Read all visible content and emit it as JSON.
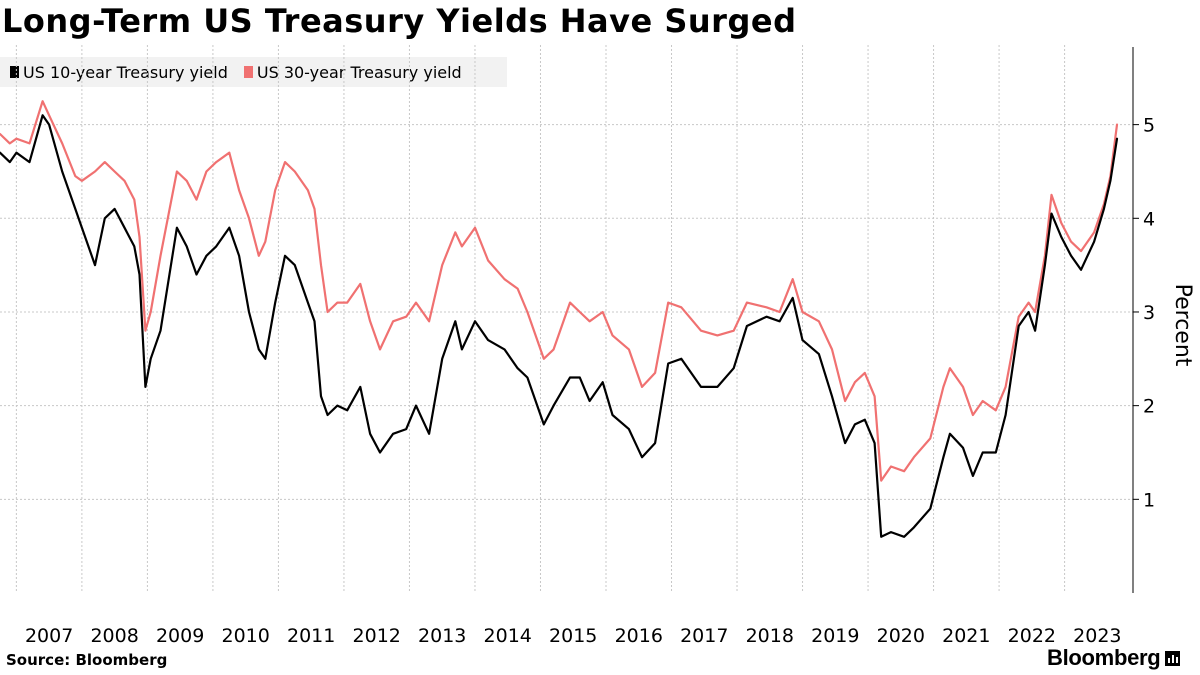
{
  "title": "Long-Term US Treasury Yields Have Surged",
  "legend": [
    {
      "label": "US 10-year Treasury yield",
      "color": "#000000"
    },
    {
      "label": "US 30-year Treasury yield",
      "color": "#f07171"
    }
  ],
  "source": "Source: Bloomberg",
  "brand": "Bloomberg",
  "chart_data": {
    "type": "line",
    "title": "Long-Term US Treasury Yields Have Surged",
    "xlabel": "",
    "ylabel": "Percent",
    "xlim": [
      2006.75,
      2023.8
    ],
    "ylim": [
      0,
      5.85
    ],
    "yticks": [
      1,
      2,
      3,
      4,
      5
    ],
    "xticks": [
      "2007",
      "2008",
      "2009",
      "2010",
      "2011",
      "2012",
      "2013",
      "2014",
      "2015",
      "2016",
      "2017",
      "2018",
      "2019",
      "2020",
      "2021",
      "2022",
      "2023"
    ],
    "grid": true,
    "legend_position": "top-left",
    "series": [
      {
        "name": "US 10-year Treasury yield",
        "color": "#000000",
        "points": [
          [
            2006.75,
            4.7
          ],
          [
            2006.9,
            4.6
          ],
          [
            2007.0,
            4.7
          ],
          [
            2007.2,
            4.6
          ],
          [
            2007.4,
            5.1
          ],
          [
            2007.5,
            5.0
          ],
          [
            2007.7,
            4.5
          ],
          [
            2007.9,
            4.1
          ],
          [
            2008.0,
            3.9
          ],
          [
            2008.2,
            3.5
          ],
          [
            2008.35,
            4.0
          ],
          [
            2008.5,
            4.1
          ],
          [
            2008.65,
            3.9
          ],
          [
            2008.8,
            3.7
          ],
          [
            2008.88,
            3.4
          ],
          [
            2008.97,
            2.2
          ],
          [
            2009.05,
            2.5
          ],
          [
            2009.2,
            2.8
          ],
          [
            2009.45,
            3.9
          ],
          [
            2009.6,
            3.7
          ],
          [
            2009.75,
            3.4
          ],
          [
            2009.9,
            3.6
          ],
          [
            2010.05,
            3.7
          ],
          [
            2010.25,
            3.9
          ],
          [
            2010.4,
            3.6
          ],
          [
            2010.55,
            3.0
          ],
          [
            2010.7,
            2.6
          ],
          [
            2010.8,
            2.5
          ],
          [
            2010.95,
            3.1
          ],
          [
            2011.1,
            3.6
          ],
          [
            2011.25,
            3.5
          ],
          [
            2011.45,
            3.1
          ],
          [
            2011.55,
            2.9
          ],
          [
            2011.65,
            2.1
          ],
          [
            2011.75,
            1.9
          ],
          [
            2011.9,
            2.0
          ],
          [
            2012.05,
            1.95
          ],
          [
            2012.25,
            2.2
          ],
          [
            2012.4,
            1.7
          ],
          [
            2012.55,
            1.5
          ],
          [
            2012.75,
            1.7
          ],
          [
            2012.95,
            1.75
          ],
          [
            2013.1,
            2.0
          ],
          [
            2013.3,
            1.7
          ],
          [
            2013.5,
            2.5
          ],
          [
            2013.7,
            2.9
          ],
          [
            2013.8,
            2.6
          ],
          [
            2014.0,
            2.9
          ],
          [
            2014.2,
            2.7
          ],
          [
            2014.45,
            2.6
          ],
          [
            2014.65,
            2.4
          ],
          [
            2014.8,
            2.3
          ],
          [
            2015.05,
            1.8
          ],
          [
            2015.2,
            2.0
          ],
          [
            2015.45,
            2.3
          ],
          [
            2015.6,
            2.3
          ],
          [
            2015.75,
            2.05
          ],
          [
            2015.95,
            2.25
          ],
          [
            2016.1,
            1.9
          ],
          [
            2016.35,
            1.75
          ],
          [
            2016.55,
            1.45
          ],
          [
            2016.75,
            1.6
          ],
          [
            2016.95,
            2.45
          ],
          [
            2017.15,
            2.5
          ],
          [
            2017.45,
            2.2
          ],
          [
            2017.7,
            2.2
          ],
          [
            2017.95,
            2.4
          ],
          [
            2018.15,
            2.85
          ],
          [
            2018.45,
            2.95
          ],
          [
            2018.65,
            2.9
          ],
          [
            2018.85,
            3.15
          ],
          [
            2019.0,
            2.7
          ],
          [
            2019.25,
            2.55
          ],
          [
            2019.45,
            2.1
          ],
          [
            2019.65,
            1.6
          ],
          [
            2019.8,
            1.8
          ],
          [
            2019.95,
            1.85
          ],
          [
            2020.1,
            1.6
          ],
          [
            2020.2,
            0.6
          ],
          [
            2020.35,
            0.65
          ],
          [
            2020.55,
            0.6
          ],
          [
            2020.7,
            0.7
          ],
          [
            2020.95,
            0.9
          ],
          [
            2021.15,
            1.45
          ],
          [
            2021.25,
            1.7
          ],
          [
            2021.45,
            1.55
          ],
          [
            2021.6,
            1.25
          ],
          [
            2021.75,
            1.5
          ],
          [
            2021.95,
            1.5
          ],
          [
            2022.1,
            1.9
          ],
          [
            2022.3,
            2.85
          ],
          [
            2022.45,
            3.0
          ],
          [
            2022.55,
            2.8
          ],
          [
            2022.7,
            3.5
          ],
          [
            2022.8,
            4.05
          ],
          [
            2022.95,
            3.8
          ],
          [
            2023.1,
            3.6
          ],
          [
            2023.25,
            3.45
          ],
          [
            2023.45,
            3.75
          ],
          [
            2023.6,
            4.1
          ],
          [
            2023.7,
            4.4
          ],
          [
            2023.8,
            4.85
          ]
        ]
      },
      {
        "name": "US 30-year Treasury yield",
        "color": "#f07171",
        "points": [
          [
            2006.75,
            4.9
          ],
          [
            2006.9,
            4.8
          ],
          [
            2007.0,
            4.85
          ],
          [
            2007.2,
            4.8
          ],
          [
            2007.4,
            5.25
          ],
          [
            2007.5,
            5.1
          ],
          [
            2007.7,
            4.8
          ],
          [
            2007.9,
            4.45
          ],
          [
            2008.0,
            4.4
          ],
          [
            2008.2,
            4.5
          ],
          [
            2008.35,
            4.6
          ],
          [
            2008.5,
            4.5
          ],
          [
            2008.65,
            4.4
          ],
          [
            2008.8,
            4.2
          ],
          [
            2008.88,
            3.8
          ],
          [
            2008.97,
            2.8
          ],
          [
            2009.05,
            3.0
          ],
          [
            2009.2,
            3.6
          ],
          [
            2009.45,
            4.5
          ],
          [
            2009.6,
            4.4
          ],
          [
            2009.75,
            4.2
          ],
          [
            2009.9,
            4.5
          ],
          [
            2010.05,
            4.6
          ],
          [
            2010.25,
            4.7
          ],
          [
            2010.4,
            4.3
          ],
          [
            2010.55,
            4.0
          ],
          [
            2010.7,
            3.6
          ],
          [
            2010.8,
            3.75
          ],
          [
            2010.95,
            4.3
          ],
          [
            2011.1,
            4.6
          ],
          [
            2011.25,
            4.5
          ],
          [
            2011.45,
            4.3
          ],
          [
            2011.55,
            4.1
          ],
          [
            2011.65,
            3.5
          ],
          [
            2011.75,
            3.0
          ],
          [
            2011.9,
            3.1
          ],
          [
            2012.05,
            3.1
          ],
          [
            2012.25,
            3.3
          ],
          [
            2012.4,
            2.9
          ],
          [
            2012.55,
            2.6
          ],
          [
            2012.75,
            2.9
          ],
          [
            2012.95,
            2.95
          ],
          [
            2013.1,
            3.1
          ],
          [
            2013.3,
            2.9
          ],
          [
            2013.5,
            3.5
          ],
          [
            2013.7,
            3.85
          ],
          [
            2013.8,
            3.7
          ],
          [
            2014.0,
            3.9
          ],
          [
            2014.2,
            3.55
          ],
          [
            2014.45,
            3.35
          ],
          [
            2014.65,
            3.25
          ],
          [
            2014.8,
            3.0
          ],
          [
            2015.05,
            2.5
          ],
          [
            2015.2,
            2.6
          ],
          [
            2015.45,
            3.1
          ],
          [
            2015.6,
            3.0
          ],
          [
            2015.75,
            2.9
          ],
          [
            2015.95,
            3.0
          ],
          [
            2016.1,
            2.75
          ],
          [
            2016.35,
            2.6
          ],
          [
            2016.55,
            2.2
          ],
          [
            2016.75,
            2.35
          ],
          [
            2016.95,
            3.1
          ],
          [
            2017.15,
            3.05
          ],
          [
            2017.45,
            2.8
          ],
          [
            2017.7,
            2.75
          ],
          [
            2017.95,
            2.8
          ],
          [
            2018.15,
            3.1
          ],
          [
            2018.45,
            3.05
          ],
          [
            2018.65,
            3.0
          ],
          [
            2018.85,
            3.35
          ],
          [
            2019.0,
            3.0
          ],
          [
            2019.25,
            2.9
          ],
          [
            2019.45,
            2.6
          ],
          [
            2019.65,
            2.05
          ],
          [
            2019.8,
            2.25
          ],
          [
            2019.95,
            2.35
          ],
          [
            2020.1,
            2.1
          ],
          [
            2020.2,
            1.2
          ],
          [
            2020.35,
            1.35
          ],
          [
            2020.55,
            1.3
          ],
          [
            2020.7,
            1.45
          ],
          [
            2020.95,
            1.65
          ],
          [
            2021.15,
            2.2
          ],
          [
            2021.25,
            2.4
          ],
          [
            2021.45,
            2.2
          ],
          [
            2021.6,
            1.9
          ],
          [
            2021.75,
            2.05
          ],
          [
            2021.95,
            1.95
          ],
          [
            2022.1,
            2.2
          ],
          [
            2022.3,
            2.95
          ],
          [
            2022.45,
            3.1
          ],
          [
            2022.55,
            3.0
          ],
          [
            2022.7,
            3.6
          ],
          [
            2022.8,
            4.25
          ],
          [
            2022.95,
            3.95
          ],
          [
            2023.1,
            3.75
          ],
          [
            2023.25,
            3.65
          ],
          [
            2023.45,
            3.85
          ],
          [
            2023.6,
            4.15
          ],
          [
            2023.7,
            4.45
          ],
          [
            2023.8,
            5.0
          ]
        ]
      }
    ]
  }
}
